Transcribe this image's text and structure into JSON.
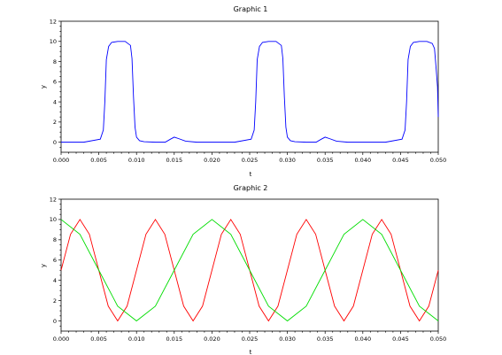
{
  "chart_data": [
    {
      "type": "line",
      "title": "Graphic 1",
      "xlabel": "t",
      "ylabel": "y",
      "xlim": [
        0,
        0.05
      ],
      "ylim": [
        -1,
        12
      ],
      "xticks": [
        "0.000",
        "0.005",
        "0.010",
        "0.015",
        "0.020",
        "0.025",
        "0.030",
        "0.035",
        "0.040",
        "0.045",
        "0.050"
      ],
      "yticks": [
        "0",
        "2",
        "4",
        "6",
        "8",
        "10",
        "12"
      ],
      "grid": false,
      "series": [
        {
          "color": "#0000ff",
          "x": [
            0.0,
            0.003,
            0.0052,
            0.0056,
            0.0058,
            0.006,
            0.0063,
            0.0067,
            0.0075,
            0.0085,
            0.0092,
            0.0094,
            0.0096,
            0.0098,
            0.01,
            0.0104,
            0.011,
            0.0125,
            0.0138,
            0.0145,
            0.015,
            0.0156,
            0.0165,
            0.018,
            0.023,
            0.0252,
            0.0256,
            0.0258,
            0.026,
            0.0263,
            0.0267,
            0.0275,
            0.0285,
            0.0292,
            0.0294,
            0.0296,
            0.0298,
            0.03,
            0.0304,
            0.031,
            0.0325,
            0.0338,
            0.0345,
            0.035,
            0.0356,
            0.0365,
            0.038,
            0.043,
            0.0452,
            0.0456,
            0.0458,
            0.046,
            0.0463,
            0.0467,
            0.0475,
            0.0485,
            0.0492,
            0.0495,
            0.0497,
            0.0499,
            0.05
          ],
          "y": [
            0.0,
            0.0,
            0.3,
            1.2,
            4.0,
            8.2,
            9.5,
            9.9,
            10.0,
            10.0,
            9.6,
            8.3,
            4.5,
            1.5,
            0.5,
            0.15,
            0.05,
            0.0,
            0.0,
            0.3,
            0.5,
            0.35,
            0.1,
            0.0,
            0.0,
            0.3,
            1.2,
            4.0,
            8.2,
            9.5,
            9.9,
            10.0,
            10.0,
            9.6,
            8.3,
            4.5,
            1.5,
            0.5,
            0.15,
            0.05,
            0.0,
            0.0,
            0.3,
            0.5,
            0.35,
            0.1,
            0.0,
            0.0,
            0.3,
            1.2,
            4.0,
            8.2,
            9.5,
            9.9,
            10.0,
            10.0,
            9.8,
            9.3,
            7.5,
            5.5,
            2.5
          ]
        }
      ]
    },
    {
      "type": "line",
      "title": "Graphic 2",
      "xlabel": "t",
      "ylabel": "y",
      "xlim": [
        0,
        0.05
      ],
      "ylim": [
        -1,
        12
      ],
      "xticks": [
        "0.000",
        "0.005",
        "0.010",
        "0.015",
        "0.020",
        "0.025",
        "0.030",
        "0.035",
        "0.040",
        "0.045",
        "0.050"
      ],
      "yticks": [
        "0",
        "2",
        "4",
        "6",
        "8",
        "10",
        "12"
      ],
      "grid": false,
      "series": [
        {
          "color": "#ff0000",
          "x": [
            0.0,
            0.00125,
            0.0025,
            0.00375,
            0.005,
            0.00625,
            0.0075,
            0.00875,
            0.01,
            0.01125,
            0.0125,
            0.01375,
            0.015,
            0.01625,
            0.0175,
            0.01875,
            0.02,
            0.02125,
            0.0225,
            0.02375,
            0.025,
            0.02625,
            0.0275,
            0.02875,
            0.03,
            0.03125,
            0.0325,
            0.03375,
            0.035,
            0.03625,
            0.0375,
            0.03875,
            0.04,
            0.04125,
            0.0425,
            0.04375,
            0.045,
            0.04625,
            0.0475,
            0.04875,
            0.05
          ],
          "y": [
            5.0,
            8.54,
            10.0,
            8.54,
            5.0,
            1.46,
            0.0,
            1.46,
            5.0,
            8.54,
            10.0,
            8.54,
            5.0,
            1.46,
            0.0,
            1.46,
            5.0,
            8.54,
            10.0,
            8.54,
            5.0,
            1.46,
            0.0,
            1.46,
            5.0,
            8.54,
            10.0,
            8.54,
            5.0,
            1.46,
            0.0,
            1.46,
            5.0,
            8.54,
            10.0,
            8.54,
            5.0,
            1.46,
            0.0,
            1.46,
            5.0
          ]
        },
        {
          "color": "#00dd00",
          "x": [
            0.0,
            0.0025,
            0.005,
            0.0075,
            0.01,
            0.0125,
            0.015,
            0.0175,
            0.02,
            0.0225,
            0.025,
            0.0275,
            0.03,
            0.0325,
            0.035,
            0.0375,
            0.04,
            0.0425,
            0.045,
            0.0475,
            0.05
          ],
          "y": [
            10.0,
            8.54,
            5.0,
            1.46,
            0.0,
            1.46,
            5.0,
            8.54,
            10.0,
            8.54,
            5.0,
            1.46,
            0.0,
            1.46,
            5.0,
            8.54,
            10.0,
            8.54,
            5.0,
            1.46,
            0.0
          ]
        }
      ]
    }
  ]
}
